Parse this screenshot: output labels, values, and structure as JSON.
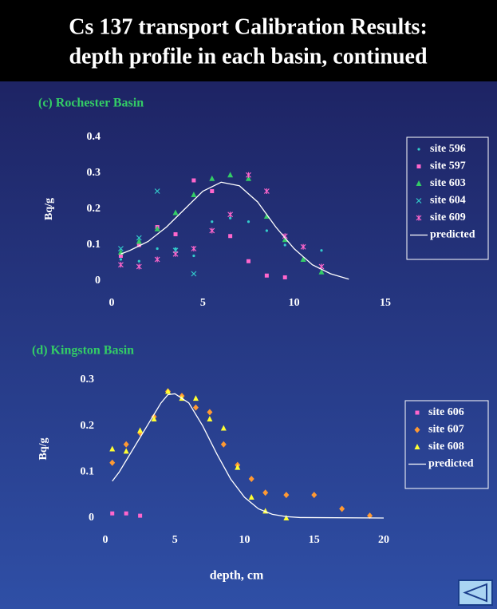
{
  "title": [
    "Cs 137 transport Calibration Results:",
    "depth profile in each basin, continued"
  ],
  "chart_data": [
    {
      "type": "scatter",
      "title": "(c) Rochester Basin",
      "ylabel": "Bq/g",
      "xlim": [
        0,
        15
      ],
      "xticks": [
        0,
        5,
        10,
        15
      ],
      "ylim": [
        0,
        0.4
      ],
      "yticks": [
        0,
        0.1,
        0.2,
        0.3,
        0.4
      ],
      "series": [
        {
          "name": "site 596",
          "color": "#33cccc",
          "marker": "dot",
          "x": [
            0.5,
            1.5,
            2.5,
            3.5,
            4.5,
            5.5,
            6.5,
            7.5,
            8.5,
            9.5,
            10.5,
            11.5
          ],
          "values": [
            0.06,
            0.055,
            0.09,
            0.09,
            0.07,
            0.165,
            0.175,
            0.165,
            0.14,
            0.1,
            0.06,
            0.085
          ]
        },
        {
          "name": "site 597",
          "color": "#ff66cc",
          "marker": "square",
          "x": [
            0.5,
            1.5,
            2.5,
            3.5,
            4.5,
            5.5,
            6.5,
            7.5,
            8.5,
            9.5
          ],
          "values": [
            0.07,
            0.1,
            0.15,
            0.13,
            0.28,
            0.25,
            0.125,
            0.055,
            0.015,
            0.01
          ]
        },
        {
          "name": "site 603",
          "color": "#33cc66",
          "marker": "triangle",
          "x": [
            0.5,
            1.5,
            2.5,
            3.5,
            4.5,
            5.5,
            6.5,
            7.5,
            8.5,
            9.5,
            10.5,
            11.5
          ],
          "values": [
            0.08,
            0.11,
            0.145,
            0.19,
            0.24,
            0.285,
            0.295,
            0.285,
            0.18,
            0.115,
            0.06,
            0.025
          ]
        },
        {
          "name": "site 604",
          "color": "#33cccc",
          "marker": "x",
          "x": [
            0.5,
            1.5,
            2.5,
            3.5,
            4.5
          ],
          "values": [
            0.09,
            0.12,
            0.25,
            0.085,
            0.02
          ]
        },
        {
          "name": "site 609",
          "color": "#ff66cc",
          "marker": "asterisk",
          "x": [
            0.5,
            1.5,
            2.5,
            3.5,
            4.5,
            5.5,
            6.5,
            7.5,
            8.5,
            9.5,
            10.5,
            11.5
          ],
          "values": [
            0.045,
            0.04,
            0.06,
            0.075,
            0.09,
            0.14,
            0.185,
            0.295,
            0.25,
            0.125,
            0.095,
            0.04
          ]
        },
        {
          "name": "predicted",
          "color": "#ffffff",
          "marker": "line",
          "x": [
            0.5,
            1,
            2,
            3,
            4,
            5,
            6,
            7,
            8,
            9,
            10,
            11,
            12,
            13
          ],
          "values": [
            0.075,
            0.085,
            0.11,
            0.15,
            0.2,
            0.25,
            0.275,
            0.265,
            0.22,
            0.15,
            0.09,
            0.045,
            0.02,
            0.005
          ]
        }
      ]
    },
    {
      "type": "scatter",
      "title": "(d) Kingston Basin",
      "ylabel": "Bq/g",
      "xlabel": "depth, cm",
      "xlim": [
        0,
        20
      ],
      "xticks": [
        0,
        5,
        10,
        15,
        20
      ],
      "ylim": [
        0,
        0.3
      ],
      "yticks": [
        0,
        0.1,
        0.2,
        0.3
      ],
      "series": [
        {
          "name": "site 606",
          "color": "#ff66cc",
          "marker": "square",
          "x": [
            0.5,
            1.5,
            2.5
          ],
          "values": [
            0.01,
            0.01,
            0.005
          ]
        },
        {
          "name": "site 607",
          "color": "#ff9933",
          "marker": "diamond",
          "x": [
            0.5,
            1.5,
            2.5,
            3.5,
            4.5,
            5.5,
            6.5,
            7.5,
            8.5,
            9.5,
            10.5,
            11.5,
            13,
            15,
            17,
            19
          ],
          "values": [
            0.12,
            0.16,
            0.185,
            0.22,
            0.275,
            0.265,
            0.24,
            0.23,
            0.16,
            0.115,
            0.085,
            0.055,
            0.05,
            0.05,
            0.02,
            0.005
          ]
        },
        {
          "name": "site 608",
          "color": "#ffff33",
          "marker": "triangle",
          "x": [
            0.5,
            1.5,
            2.5,
            3.5,
            4.5,
            5.5,
            6.5,
            7.5,
            8.5,
            9.5,
            10.5,
            11.5,
            13
          ],
          "values": [
            0.15,
            0.145,
            0.19,
            0.215,
            0.275,
            0.26,
            0.26,
            0.215,
            0.195,
            0.11,
            0.045,
            0.015,
            0.0
          ]
        },
        {
          "name": "predicted",
          "color": "#ffffff",
          "marker": "line",
          "x": [
            0.5,
            1,
            2,
            3,
            4,
            4.5,
            5,
            6,
            7,
            8,
            9,
            10,
            11,
            12,
            13,
            14,
            20
          ],
          "values": [
            0.08,
            0.1,
            0.15,
            0.2,
            0.25,
            0.268,
            0.27,
            0.25,
            0.2,
            0.14,
            0.085,
            0.045,
            0.02,
            0.008,
            0.003,
            0.001,
            0
          ]
        }
      ]
    }
  ]
}
